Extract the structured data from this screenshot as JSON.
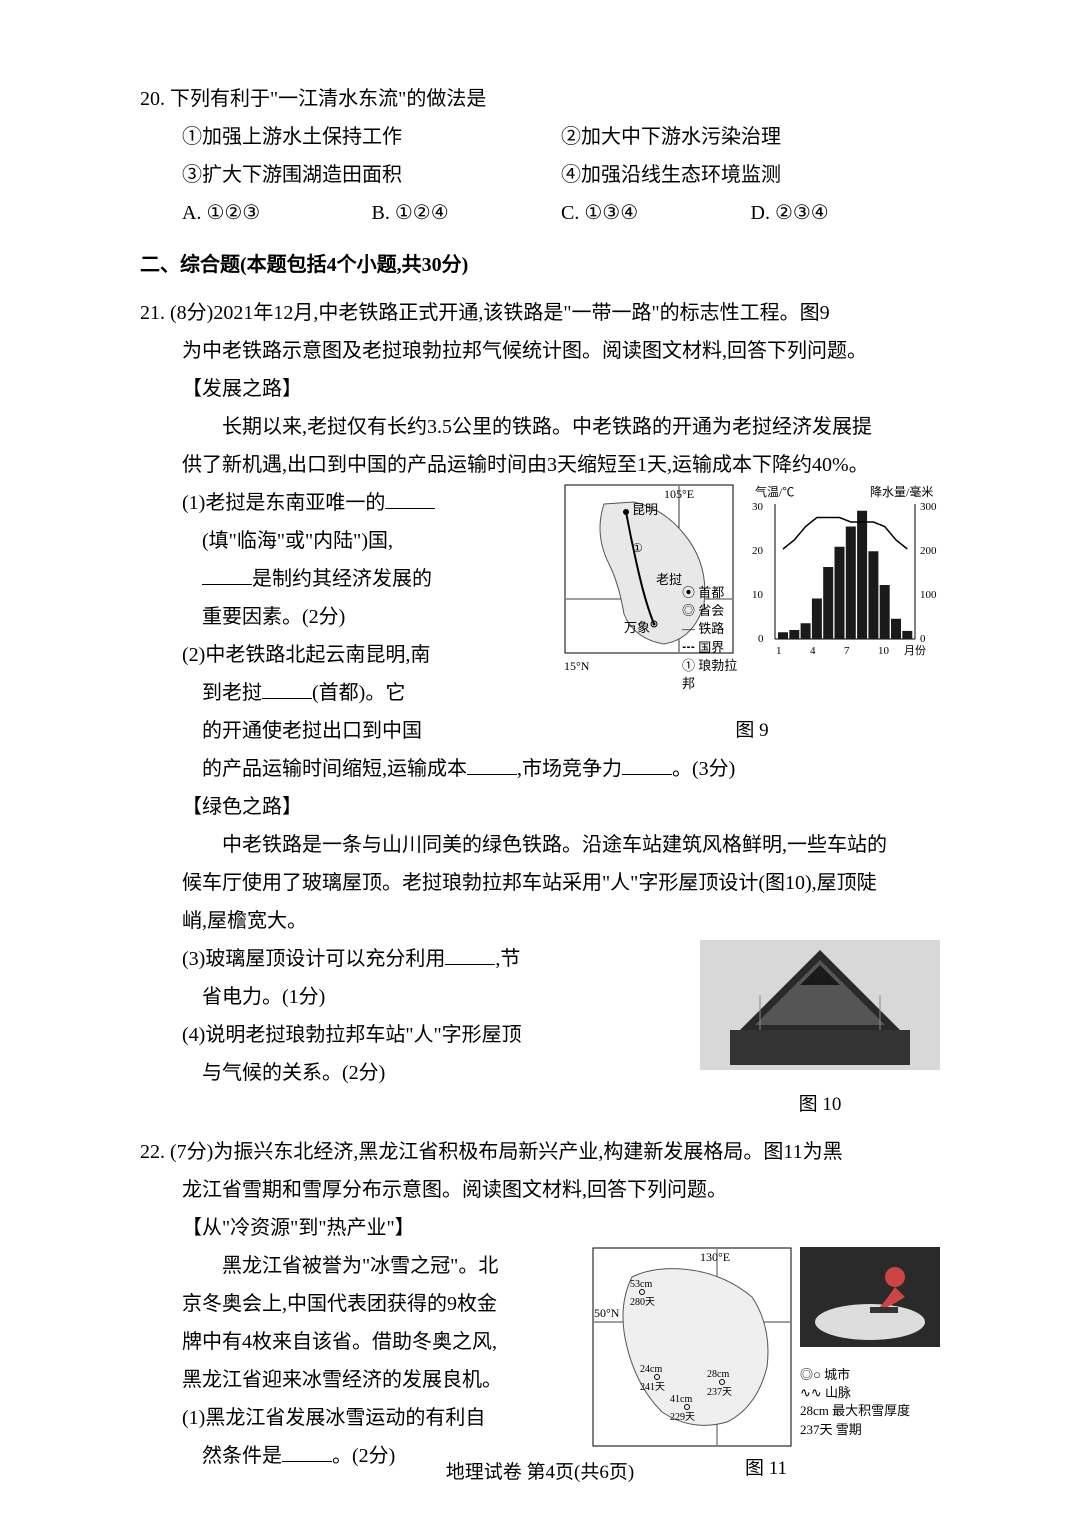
{
  "q20": {
    "num": "20.",
    "stem": "下列有利于\"一江清水东流\"的做法是",
    "opts": [
      "①加强上游水土保持工作",
      "②加大中下游水污染治理",
      "③扩大下游围湖造田面积",
      "④加强沿线生态环境监测"
    ],
    "choices": [
      "A. ①②③",
      "B. ①②④",
      "C. ①③④",
      "D. ②③④"
    ]
  },
  "section2_header": "二、综合题(本题包括4个小题,共30分)",
  "q21": {
    "num": "21.",
    "stem_a": "(8分)2021年12月,中老铁路正式开通,该铁路是\"一带一路\"的标志性工程。图9",
    "stem_b": "为中老铁路示意图及老挝琅勃拉邦气候统计图。阅读图文材料,回答下列问题。",
    "sub1_title": "【发展之路】",
    "sub1_para_a": "长期以来,老挝仅有长约3.5公里的铁路。中老铁路的开通为老挝经济发展提",
    "sub1_para_b": "供了新机遇,出口到中国的产品运输时间由3天缩短至1天,运输成本下降约40%。",
    "q1_a": "(1)老挝是东南亚唯一的",
    "q1_b": "(填\"临海\"或\"内陆\")国,",
    "q1_c": "是制约其经济发展的",
    "q1_d": "重要因素。(2分)",
    "q2_a": "(2)中老铁路北起云南昆明,南",
    "q2_b": "到老挝",
    "q2_b2": "(首都)。它",
    "q2_c": "的开通使老挝出口到中国",
    "q2_d_a": "的产品运输时间缩短,运输成本",
    "q2_d_b": ",市场竞争力",
    "q2_d_c": "。(3分)",
    "sub2_title": "【绿色之路】",
    "sub2_para_a": "中老铁路是一条与山川同美的绿色铁路。沿途车站建筑风格鲜明,一些车站的",
    "sub2_para_b": "候车厅使用了玻璃屋顶。老挝琅勃拉邦车站采用\"人\"字形屋顶设计(图10),屋顶陡",
    "sub2_para_c": "峭,屋檐宽大。",
    "q3_a": "(3)玻璃屋顶设计可以充分利用",
    "q3_b": ",节",
    "q3_c": "省电力。(1分)",
    "q4_a": "(4)说明老挝琅勃拉邦车站\"人\"字形屋顶",
    "q4_b": "与气候的关系。(2分)",
    "fig9_caption": "图 9",
    "fig10_caption": "图 10",
    "map": {
      "lon_label": "105°E",
      "lat_label": "15°N",
      "cities": [
        "昆明",
        "万象"
      ],
      "country": "老挝",
      "legend": [
        "⦿ 首都",
        "◎ 省会",
        "— 铁路",
        "┅ 国界",
        "① 琅勃拉邦"
      ]
    },
    "climate_chart": {
      "type": "climograph",
      "temp_label": "气温/℃",
      "precip_label": "降水量/毫米",
      "temp_ticks": [
        0,
        10,
        20,
        30
      ],
      "precip_ticks": [
        0,
        100,
        200,
        300
      ],
      "x_ticks": [
        "1",
        "4",
        "7",
        "10",
        "月份"
      ],
      "bar_color": "#1a1a1a",
      "precip_values": [
        15,
        20,
        35,
        90,
        160,
        205,
        250,
        285,
        195,
        120,
        45,
        18
      ],
      "temp_values": [
        20,
        22,
        25,
        27,
        27,
        27,
        26,
        26,
        26,
        25,
        22,
        20
      ],
      "background": "#ffffff"
    }
  },
  "q22": {
    "num": "22.",
    "stem_a": "(7分)为振兴东北经济,黑龙江省积极布局新兴产业,构建新发展格局。图11为黑",
    "stem_b": "龙江省雪期和雪厚分布示意图。阅读图文材料,回答下列问题。",
    "sub1_title": "【从\"冷资源\"到\"热产业\"】",
    "para_a": "黑龙江省被誉为\"冰雪之冠\"。北",
    "para_b": "京冬奥会上,中国代表团获得的9枚金",
    "para_c": "牌中有4枚来自该省。借助冬奥之风,",
    "para_d": "黑龙江省迎来冰雪经济的发展良机。",
    "q1_a": "(1)黑龙江省发展冰雪运动的有利自",
    "q1_b": "然条件是",
    "q1_c": "。(2分)",
    "fig11_caption": "图 11",
    "map": {
      "lon_label": "130°E",
      "lat_label": "50°N",
      "data_points": [
        {
          "snow": "53cm",
          "days": "280天"
        },
        {
          "snow": "24cm",
          "days": "241天"
        },
        {
          "snow": "41cm",
          "days": "229天"
        },
        {
          "snow": "28cm",
          "days": "237天"
        }
      ],
      "legend": [
        "◎○ 城市",
        "∿∿ 山脉",
        "28cm 最大积雪厚度",
        "237天 雪期"
      ]
    }
  },
  "footer": "地理试卷  第4页(共6页)"
}
